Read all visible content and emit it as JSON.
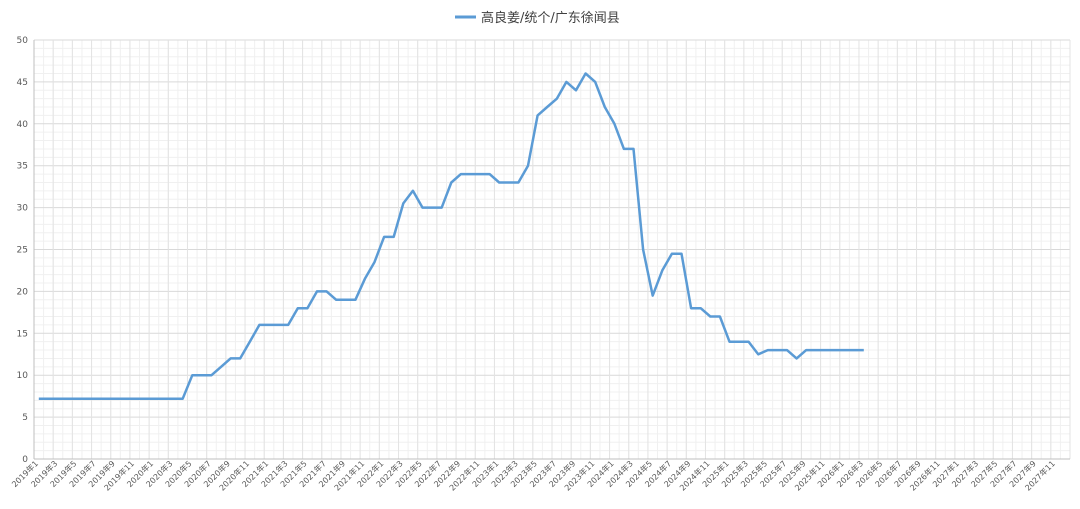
{
  "chart_data": {
    "type": "line",
    "legend": {
      "position": "top-center",
      "label": "高良姜/统个/广东徐闻县"
    },
    "series": [
      {
        "name": "高良姜/统个/广东徐闻县",
        "color": "#5B9BD5",
        "x_labels": [
          "2019年1",
          "2019年2",
          "2019年3",
          "2019年4",
          "2019年5",
          "2019年6",
          "2019年7",
          "2019年8",
          "2019年9",
          "2019年10",
          "2019年11",
          "2019年12",
          "2020年1",
          "2020年2",
          "2020年3",
          "2020年4",
          "2020年5",
          "2020年6",
          "2020年7",
          "2020年8",
          "2020年9",
          "2020年10",
          "2020年11",
          "2020年12",
          "2021年1",
          "2021年2",
          "2021年3",
          "2021年4",
          "2021年5",
          "2021年6",
          "2021年7",
          "2021年8",
          "2021年9",
          "2021年10",
          "2021年11",
          "2021年12",
          "2022年1",
          "2022年2",
          "2022年3",
          "2022年4",
          "2022年5",
          "2022年6",
          "2022年7",
          "2022年8",
          "2022年9",
          "2022年10",
          "2022年11",
          "2022年12",
          "2023年1",
          "2023年2",
          "2023年3",
          "2023年4",
          "2023年5",
          "2023年6",
          "2023年7",
          "2023年8",
          "2023年9",
          "2023年10",
          "2023年11",
          "2023年12",
          "2024年1",
          "2024年2",
          "2024年3",
          "2024年4",
          "2024年5",
          "2024年6",
          "2024年7",
          "2024年8",
          "2024年9",
          "2024年10",
          "2024年11",
          "2024年12",
          "2025年1",
          "2025年2",
          "2025年3",
          "2025年4",
          "2025年5",
          "2025年6",
          "2025年7",
          "2025年8",
          "2025年9",
          "2025年10",
          "2025年11",
          "2025年12",
          "2026年1",
          "2026年2",
          "2026年3"
        ],
        "values": [
          7.2,
          7.2,
          7.2,
          7.2,
          7.2,
          7.2,
          7.2,
          7.2,
          7.2,
          7.2,
          7.2,
          7.2,
          7.2,
          7.2,
          7.2,
          7.2,
          10,
          10,
          10,
          11,
          12,
          12,
          14,
          16,
          16,
          16,
          16,
          18,
          18,
          20,
          20,
          19,
          19,
          19,
          21.5,
          23.5,
          26.5,
          26.5,
          30.5,
          32,
          30,
          30,
          30,
          33,
          34,
          34,
          34,
          34,
          33,
          33,
          33,
          35,
          41,
          42,
          43,
          45,
          44,
          46,
          45,
          42,
          40,
          37,
          37,
          25,
          19.5,
          22.5,
          24.5,
          24.5,
          18,
          18,
          17,
          17,
          14,
          14,
          14,
          12.5,
          13,
          13,
          13,
          12,
          13,
          13,
          13,
          13,
          13,
          13,
          13
        ]
      }
    ],
    "x_axis": {
      "tick_labels": [
        "2019年1",
        "2019年3",
        "2019年5",
        "2019年7",
        "2019年9",
        "2019年11",
        "2020年1",
        "2020年3",
        "2020年5",
        "2020年7",
        "2020年9",
        "2020年11",
        "2021年1",
        "2021年3",
        "2021年5",
        "2021年7",
        "2021年9",
        "2021年11",
        "2022年1",
        "2022年3",
        "2022年5",
        "2022年7",
        "2022年9",
        "2022年11",
        "2023年1",
        "2023年3",
        "2023年5",
        "2023年7",
        "2023年9",
        "2023年11",
        "2024年1",
        "2024年3",
        "2024年5",
        "2024年7",
        "2024年9",
        "2024年11",
        "2025年1",
        "2025年3",
        "2025年5",
        "2025年7",
        "2025年9",
        "2025年11",
        "2026年1",
        "2026年3",
        "2026年5",
        "2026年7",
        "2026年9",
        "2026年11",
        "2027年1",
        "2027年3",
        "2027年5",
        "2027年7",
        "2027年9",
        "2027年11"
      ],
      "range": [
        "2019年1",
        "2027年11"
      ]
    },
    "y_axis": {
      "ylim": [
        0,
        50
      ],
      "tick_labels": [
        "0",
        "5",
        "10",
        "15",
        "20",
        "25",
        "30",
        "35",
        "40",
        "45",
        "50"
      ],
      "major_step": 5,
      "minor_step": 1
    },
    "grid": true
  }
}
